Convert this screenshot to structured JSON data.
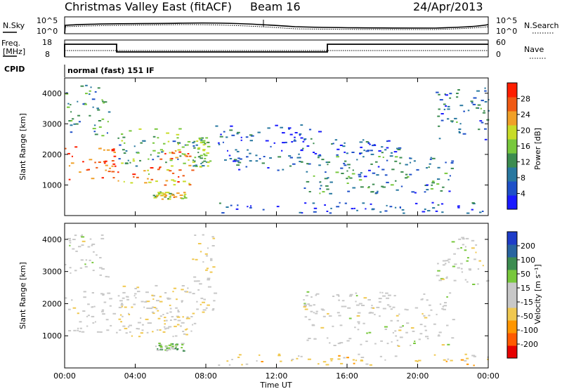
{
  "header": {
    "station": "Christmas Valley East (fitACF)",
    "beam": "Beam 16",
    "date": "24/Apr/2013"
  },
  "status_panels": {
    "nsky_label": "N.Sky",
    "nsky_ticks": [
      "10^5",
      "10^0"
    ],
    "nsearch_label": "N.Search",
    "freq_label_line1": "Freq.",
    "freq_label_line2": "[MHz]",
    "freq_ticks": [
      "18",
      "8"
    ],
    "nave_label": "Nave",
    "nave_ticks": [
      "60",
      "0"
    ],
    "cpid_label": "CPID",
    "cpid_value": "normal (fast) 151 IF"
  },
  "chart_data": [
    {
      "type": "heatmap",
      "title": "",
      "ylabel": "Slant Range [km]",
      "xlabel": "",
      "x_unit": "hours UT",
      "xlim": [
        0,
        24
      ],
      "ylim": [
        0,
        4500
      ],
      "yticks": [
        1000,
        2000,
        3000,
        4000
      ],
      "colorbar": {
        "label": "Power [dB]",
        "ticks": [
          "28",
          "24",
          "20",
          "16",
          "12",
          "8",
          "4"
        ],
        "range": [
          0,
          30
        ],
        "colors": [
          "#1a1aff",
          "#1e50c8",
          "#2878a0",
          "#3c8c50",
          "#78c83c",
          "#c8dc28",
          "#f0a028",
          "#f05a14",
          "#ff1e00"
        ]
      },
      "echo_regions": [
        {
          "t0": 0.0,
          "t1": 3.0,
          "r0": 1200,
          "r1": 2300,
          "power_db": 26
        },
        {
          "t0": 3.0,
          "t1": 7.2,
          "r0": 1000,
          "r1": 2200,
          "power_db": 22
        },
        {
          "t0": 7.2,
          "t1": 8.2,
          "r0": 1600,
          "r1": 2600,
          "power_db": 14
        },
        {
          "t0": 0.0,
          "t1": 2.5,
          "r0": 2600,
          "r1": 4300,
          "power_db": 10
        },
        {
          "t0": 3.0,
          "t1": 8.0,
          "r0": 1600,
          "r1": 2900,
          "power_db": 12
        },
        {
          "t0": 5.0,
          "t1": 6.8,
          "r0": 550,
          "r1": 800,
          "power_db": 18
        },
        {
          "t0": 8.5,
          "t1": 14.5,
          "r0": 1500,
          "r1": 3000,
          "power_db": 6
        },
        {
          "t0": 13.5,
          "t1": 22.0,
          "r0": 700,
          "r1": 2000,
          "power_db": 9
        },
        {
          "t0": 15.0,
          "t1": 19.0,
          "r0": 2000,
          "r1": 2500,
          "power_db": 6
        },
        {
          "t0": 21.0,
          "t1": 24.0,
          "r0": 2500,
          "r1": 4200,
          "power_db": 8
        },
        {
          "t0": 8.5,
          "t1": 24.0,
          "r0": 100,
          "r1": 450,
          "power_db": 5
        }
      ]
    },
    {
      "type": "heatmap",
      "title": "",
      "ylabel": "Slant Range [km]",
      "xlabel": "Time UT",
      "x_unit": "hours UT",
      "xlim": [
        0,
        24
      ],
      "ylim": [
        0,
        4500
      ],
      "yticks": [
        1000,
        2000,
        3000,
        4000
      ],
      "xticks": [
        "00:00",
        "04:00",
        "08:00",
        "12:00",
        "16:00",
        "20:00",
        "00:00"
      ],
      "colorbar": {
        "label": "Velocity [m s⁻¹]",
        "ticks": [
          "200",
          "100",
          "50",
          "15",
          "-15",
          "-50",
          "-100",
          "-200"
        ],
        "range": [
          -250,
          250
        ],
        "colors": [
          "#e60000",
          "#ff5a00",
          "#ff9600",
          "#f0c850",
          "#c8c8c8",
          "#c8c8c8",
          "#78c83c",
          "#3c8c50",
          "#2864a0",
          "#1e3cc8"
        ]
      },
      "echo_regions": [
        {
          "t0": 0.0,
          "t1": 7.5,
          "r0": 1100,
          "r1": 2400,
          "velocity": -10
        },
        {
          "t0": 3.0,
          "t1": 7.0,
          "r0": 1000,
          "r1": 2600,
          "velocity": -40
        },
        {
          "t0": 7.2,
          "t1": 8.5,
          "r0": 1700,
          "r1": 4200,
          "velocity": -30
        },
        {
          "t0": 0.0,
          "t1": 2.5,
          "r0": 2800,
          "r1": 4200,
          "velocity": 5
        },
        {
          "t0": 5.0,
          "t1": 6.8,
          "r0": 550,
          "r1": 800,
          "velocity": 60
        },
        {
          "t0": 13.5,
          "t1": 22.0,
          "r0": 700,
          "r1": 2400,
          "velocity": 0
        },
        {
          "t0": 21.0,
          "t1": 24.0,
          "r0": 2600,
          "r1": 4100,
          "velocity": 0
        },
        {
          "t0": 8.5,
          "t1": 24.0,
          "r0": 100,
          "r1": 450,
          "velocity": -60
        }
      ]
    }
  ]
}
